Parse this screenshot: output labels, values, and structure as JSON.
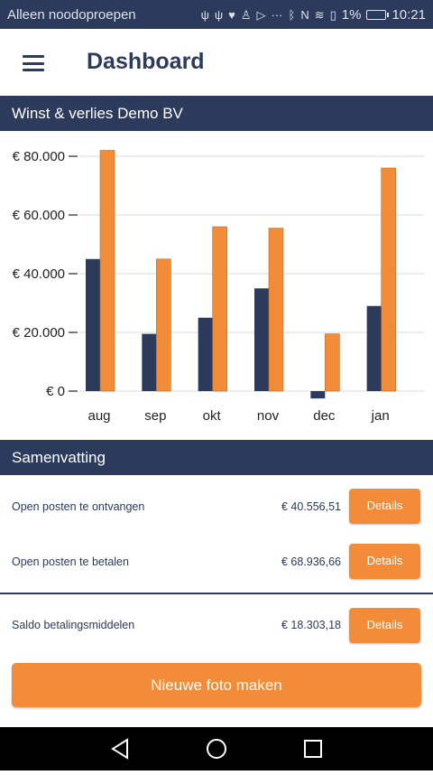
{
  "status_bar": {
    "carrier": "Alleen noodoproepen",
    "battery_percent": "1%",
    "time": "10:21",
    "icons": [
      "usb-icon",
      "usb-icon",
      "heart-rate-icon",
      "person-icon",
      "play-store-icon",
      "more-icon",
      "bluetooth-icon",
      "nfc-icon",
      "wifi-icon",
      "sim-icon",
      "battery-charging-icon"
    ]
  },
  "app_bar": {
    "menu_icon": "hamburger-menu-icon",
    "title": "Dashboard"
  },
  "chart_section": {
    "header": "Winst & verlies Demo BV"
  },
  "chart_data": {
    "type": "bar",
    "categories": [
      "aug",
      "sep",
      "okt",
      "nov",
      "dec",
      "jan"
    ],
    "series": [
      {
        "color": "#2c3a5c",
        "values": [
          45000,
          19500,
          25000,
          35000,
          -2500,
          29000
        ]
      },
      {
        "color": "#f28c38",
        "values": [
          82000,
          45000,
          56000,
          55500,
          19500,
          76000
        ]
      }
    ],
    "yticks": [
      0,
      20000,
      40000,
      60000,
      80000
    ],
    "ytick_labels": [
      "€ 0",
      "€ 20.000",
      "€ 40.000",
      "€ 60.000",
      "€ 80.000"
    ],
    "ylim": [
      -3000,
      82000
    ],
    "grid": true
  },
  "summary": {
    "header": "Samenvatting",
    "rows": [
      {
        "label": "Open posten te ontvangen",
        "amount": "€ 40.556,51",
        "button": "Details"
      },
      {
        "label": "Open posten te betalen",
        "amount": "€ 68.936,66",
        "button": "Details"
      },
      {
        "label": "Saldo betalingsmiddelen",
        "amount": "€ 18.303,18",
        "button": "Details"
      }
    ]
  },
  "primary_action": "Nieuwe foto maken",
  "nav_bar": {
    "icons": [
      "back-icon",
      "home-icon",
      "recents-icon"
    ]
  },
  "colors": {
    "navy": "#2c3a5c",
    "orange": "#f28c38"
  }
}
